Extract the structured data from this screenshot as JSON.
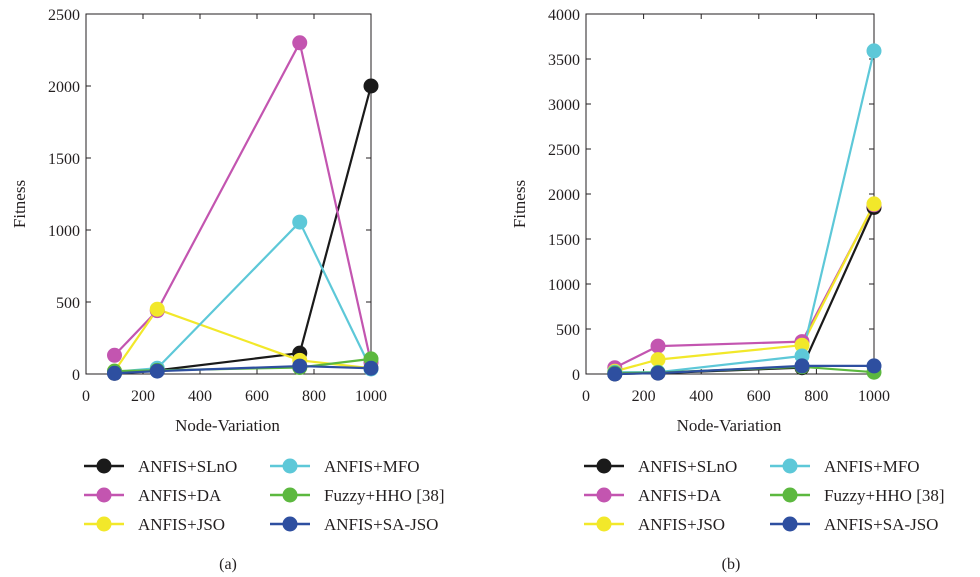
{
  "chart_data": [
    {
      "type": "line",
      "panel_label": "(a)",
      "xlabel": "Node-Variation",
      "ylabel": "Fitness",
      "xlim": [
        0,
        1000
      ],
      "ylim": [
        0,
        2500
      ],
      "xticks": [
        "0",
        "200",
        "400",
        "600",
        "800",
        "1000"
      ],
      "yticks": [
        "0",
        "500",
        "1000",
        "1500",
        "2000",
        "2500"
      ],
      "x": [
        100,
        250,
        750,
        1000
      ],
      "grid": false,
      "legend_position": "below",
      "series": [
        {
          "name": "ANFIS+SLnO",
          "color": "#1a1a1a",
          "values": [
            5,
            25,
            145,
            2000
          ]
        },
        {
          "name": "ANFIS+DA",
          "color": "#c355b0",
          "values": [
            130,
            440,
            2300,
            80
          ]
        },
        {
          "name": "ANFIS+JSO",
          "color": "#f2e82a",
          "values": [
            20,
            450,
            95,
            40
          ]
        },
        {
          "name": "ANFIS+MFO",
          "color": "#5dc8d8",
          "values": [
            15,
            40,
            1055,
            35
          ]
        },
        {
          "name": "Fuzzy+HHO [38]",
          "color": "#5cb83f",
          "values": [
            20,
            25,
            45,
            105
          ]
        },
        {
          "name": "ANFIS+SA-JSO",
          "color": "#2e4fa0",
          "values": [
            5,
            20,
            55,
            40
          ]
        }
      ]
    },
    {
      "type": "line",
      "panel_label": "(b)",
      "xlabel": "Node-Variation",
      "ylabel": "Fitness",
      "xlim": [
        0,
        1000
      ],
      "ylim": [
        0,
        4000
      ],
      "xticks": [
        "0",
        "200",
        "400",
        "600",
        "800",
        "1000"
      ],
      "yticks": [
        "0",
        "500",
        "1000",
        "1500",
        "2000",
        "2500",
        "3000",
        "3500",
        "4000"
      ],
      "x": [
        100,
        250,
        750,
        1000
      ],
      "grid": false,
      "legend_position": "below",
      "series": [
        {
          "name": "ANFIS+SLnO",
          "color": "#1a1a1a",
          "values": [
            0,
            10,
            70,
            1850
          ]
        },
        {
          "name": "ANFIS+DA",
          "color": "#c355b0",
          "values": [
            70,
            310,
            360,
            1880
          ]
        },
        {
          "name": "ANFIS+JSO",
          "color": "#f2e82a",
          "values": [
            30,
            160,
            320,
            1890
          ]
        },
        {
          "name": "ANFIS+MFO",
          "color": "#5dc8d8",
          "values": [
            20,
            20,
            200,
            3590
          ]
        },
        {
          "name": "Fuzzy+HHO [38]",
          "color": "#5cb83f",
          "values": [
            10,
            15,
            80,
            20
          ]
        },
        {
          "name": "ANFIS+SA-JSO",
          "color": "#2e4fa0",
          "values": [
            0,
            10,
            90,
            90
          ]
        }
      ]
    }
  ]
}
